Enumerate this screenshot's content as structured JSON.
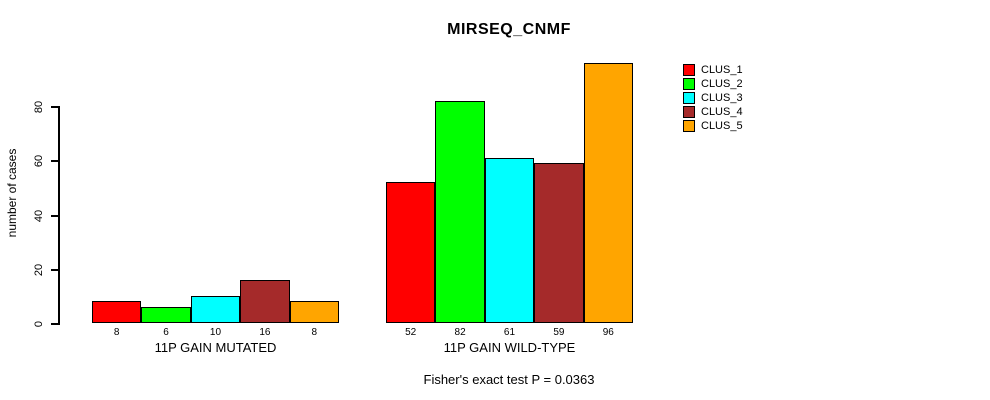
{
  "chart_data": {
    "type": "bar",
    "title": "MIRSEQ_CNMF",
    "ylabel": "number of cases",
    "xlabel": "",
    "yticks": [
      0,
      20,
      40,
      60,
      80
    ],
    "ylim": [
      0,
      100
    ],
    "grid": false,
    "legend_position": "right",
    "categories": [
      "11P GAIN MUTATED",
      "11P GAIN WILD-TYPE"
    ],
    "series": [
      {
        "name": "CLUS_1",
        "color": "#FF0000",
        "values": [
          8,
          52
        ]
      },
      {
        "name": "CLUS_2",
        "color": "#00FF00",
        "values": [
          6,
          82
        ]
      },
      {
        "name": "CLUS_3",
        "color": "#00FFFF",
        "values": [
          10,
          61
        ]
      },
      {
        "name": "CLUS_4",
        "color": "#A52A2A",
        "values": [
          16,
          59
        ]
      },
      {
        "name": "CLUS_5",
        "color": "#FFA500",
        "values": [
          8,
          96
        ]
      }
    ],
    "bar_value_labels": [
      [
        8,
        6,
        10,
        16,
        8
      ],
      [
        52,
        82,
        61,
        59,
        96
      ]
    ],
    "annotation": "Fisher's exact test P = 0.0363"
  }
}
